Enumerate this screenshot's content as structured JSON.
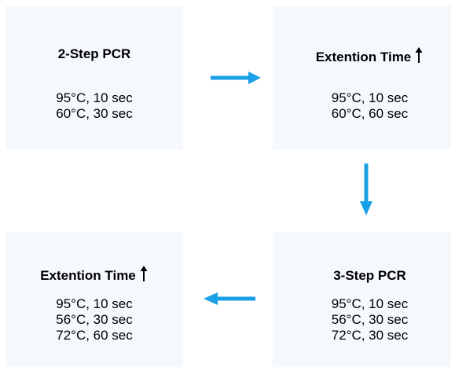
{
  "colors": {
    "box_fill": "#f5f8fd",
    "arrow": "#1aa0e6",
    "text": "#000000"
  },
  "steps": [
    {
      "title": "2-Step PCR",
      "lines": [
        "95°C, 10 sec",
        "60°C, 30 sec"
      ],
      "has_up_arrow": false
    },
    {
      "title": "Extention Time",
      "lines": [
        "95°C, 10 sec",
        "60°C, 60 sec"
      ],
      "has_up_arrow": true
    },
    {
      "title": "3-Step PCR",
      "lines": [
        "95°C, 10 sec",
        "56°C, 30 sec",
        "72°C, 30 sec"
      ],
      "has_up_arrow": false
    },
    {
      "title": "Extention Time",
      "lines": [
        "95°C, 10 sec",
        "56°C, 30 sec",
        "72°C, 60 sec"
      ],
      "has_up_arrow": true
    }
  ],
  "flow": [
    {
      "from": 0,
      "to": 1,
      "direction": "right"
    },
    {
      "from": 1,
      "to": 2,
      "direction": "down"
    },
    {
      "from": 2,
      "to": 3,
      "direction": "left"
    }
  ]
}
